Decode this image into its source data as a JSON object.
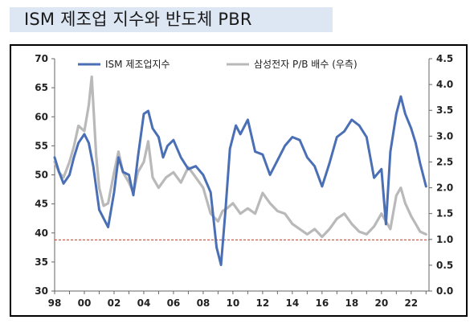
{
  "title": "ISM 제조업 지수와 반도체 PBR",
  "chart_data": {
    "type": "line",
    "title": "ISM 제조업 지수와 반도체 PBR",
    "x_ticks": [
      "98",
      "00",
      "02",
      "04",
      "06",
      "08",
      "10",
      "12",
      "14",
      "16",
      "18",
      "20",
      "22"
    ],
    "x_range": [
      1998,
      2023.2
    ],
    "y_left": {
      "ticks": [
        "30",
        "35",
        "40",
        "45",
        "50",
        "55",
        "60",
        "65",
        "70"
      ],
      "range": [
        30,
        70
      ]
    },
    "y_right": {
      "ticks": [
        "0.0",
        "0.5",
        "1.0",
        "1.5",
        "2.0",
        "2.5",
        "3.0",
        "3.5",
        "4.0",
        "4.5"
      ],
      "range": [
        0,
        4.5
      ]
    },
    "reference_line": {
      "axis": "left",
      "value": 38.8,
      "color": "#c0392b",
      "style": "dashed"
    },
    "legend_position": "top",
    "series": [
      {
        "name": "ISM 제조업지수",
        "axis": "left",
        "color": "#4a6fb5",
        "x": [
          1998.0,
          1998.3,
          1998.6,
          1999.0,
          1999.3,
          1999.6,
          2000.0,
          2000.3,
          2000.6,
          2001.0,
          2001.3,
          2001.6,
          2002.0,
          2002.3,
          2002.6,
          2003.0,
          2003.3,
          2003.6,
          2004.0,
          2004.3,
          2004.6,
          2005.0,
          2005.3,
          2005.6,
          2006.0,
          2006.5,
          2007.0,
          2007.5,
          2008.0,
          2008.5,
          2008.9,
          2009.2,
          2009.5,
          2009.8,
          2010.2,
          2010.5,
          2011.0,
          2011.5,
          2012.0,
          2012.5,
          2013.0,
          2013.5,
          2014.0,
          2014.5,
          2015.0,
          2015.5,
          2016.0,
          2016.5,
          2017.0,
          2017.5,
          2018.0,
          2018.5,
          2019.0,
          2019.5,
          2020.0,
          2020.3,
          2020.6,
          2021.0,
          2021.3,
          2021.6,
          2022.0,
          2022.3,
          2022.6,
          2023.0
        ],
        "values": [
          53.0,
          50.5,
          48.5,
          50.0,
          53.0,
          55.5,
          57.0,
          55.5,
          51.5,
          44.0,
          42.5,
          41.0,
          47.0,
          53.0,
          50.5,
          50.0,
          46.5,
          53.0,
          60.5,
          61.0,
          58.0,
          56.5,
          53.0,
          55.0,
          56.0,
          53.0,
          51.0,
          51.5,
          50.0,
          47.0,
          37.5,
          34.5,
          44.0,
          54.5,
          58.5,
          57.0,
          59.5,
          54.0,
          53.5,
          50.0,
          52.5,
          55.0,
          56.5,
          56.0,
          53.0,
          51.5,
          48.0,
          52.0,
          56.5,
          57.5,
          59.5,
          58.5,
          56.5,
          49.5,
          51.0,
          41.5,
          54.0,
          60.5,
          63.5,
          60.5,
          58.0,
          55.5,
          52.0,
          48.0
        ]
      },
      {
        "name": "삼성전자 P/B 배수 (우측)",
        "axis": "right",
        "color": "#b9b9b9",
        "x": [
          1998.0,
          1998.3,
          1998.6,
          1999.0,
          1999.3,
          1999.6,
          2000.0,
          2000.3,
          2000.5,
          2000.8,
          2001.0,
          2001.3,
          2001.6,
          2002.0,
          2002.3,
          2002.6,
          2003.0,
          2003.3,
          2003.6,
          2004.0,
          2004.3,
          2004.6,
          2005.0,
          2005.5,
          2006.0,
          2006.5,
          2007.0,
          2007.5,
          2008.0,
          2008.5,
          2009.0,
          2009.3,
          2009.6,
          2010.0,
          2010.5,
          2011.0,
          2011.5,
          2012.0,
          2012.5,
          2013.0,
          2013.5,
          2014.0,
          2014.5,
          2015.0,
          2015.5,
          2016.0,
          2016.5,
          2017.0,
          2017.5,
          2018.0,
          2018.5,
          2019.0,
          2019.5,
          2020.0,
          2020.3,
          2020.6,
          2021.0,
          2021.3,
          2021.6,
          2022.0,
          2022.3,
          2022.6,
          2023.0
        ],
        "values": [
          2.5,
          2.3,
          2.2,
          2.5,
          2.8,
          3.2,
          3.1,
          3.6,
          4.15,
          2.6,
          2.0,
          1.65,
          1.7,
          2.3,
          2.7,
          2.3,
          2.1,
          1.9,
          2.3,
          2.5,
          2.9,
          2.2,
          2.0,
          2.2,
          2.3,
          2.1,
          2.4,
          2.2,
          2.0,
          1.5,
          1.35,
          1.55,
          1.6,
          1.7,
          1.5,
          1.6,
          1.5,
          1.9,
          1.7,
          1.55,
          1.5,
          1.3,
          1.2,
          1.1,
          1.2,
          1.05,
          1.2,
          1.4,
          1.5,
          1.3,
          1.15,
          1.1,
          1.25,
          1.5,
          1.35,
          1.2,
          1.85,
          2.0,
          1.7,
          1.45,
          1.3,
          1.15,
          1.1
        ]
      }
    ]
  }
}
